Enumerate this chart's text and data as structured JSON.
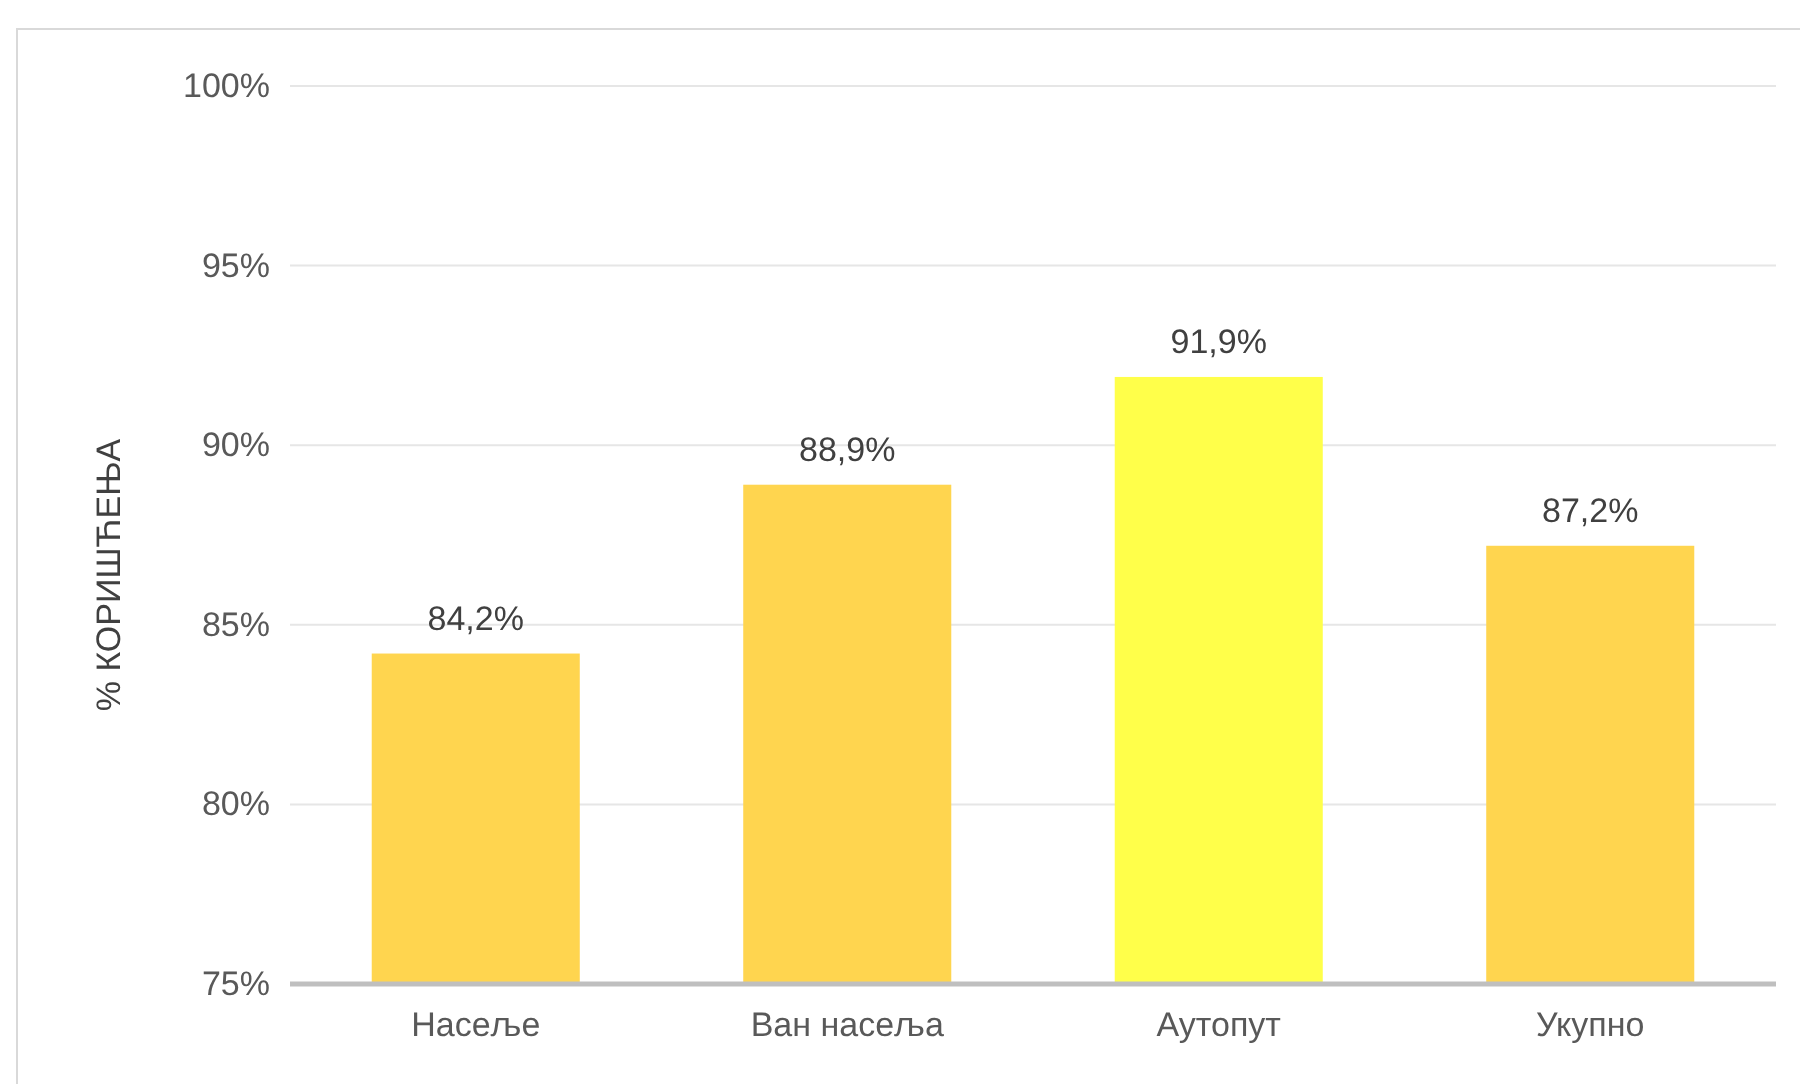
{
  "chart_data": {
    "type": "bar",
    "ylabel": "% КОРИШЋЕЊА",
    "categories": [
      "Насеље",
      "Ван насеља",
      "Аутопут",
      "Укупно"
    ],
    "values": [
      84.2,
      88.9,
      91.9,
      87.2
    ],
    "colors": [
      "#ffd54f",
      "#ffd54f",
      "#ffff4a",
      "#ffd54f"
    ],
    "value_labels": [
      "84,2%",
      "88,9%",
      "91,9%",
      "87,2%"
    ],
    "ylim": [
      75,
      100
    ],
    "yticks": [
      {
        "value": 75,
        "label": "75%"
      },
      {
        "value": 80,
        "label": "80%"
      },
      {
        "value": 85,
        "label": "85%"
      },
      {
        "value": 90,
        "label": "90%"
      },
      {
        "value": 95,
        "label": "95%"
      },
      {
        "value": 100,
        "label": "100%"
      }
    ],
    "grid": "y"
  }
}
